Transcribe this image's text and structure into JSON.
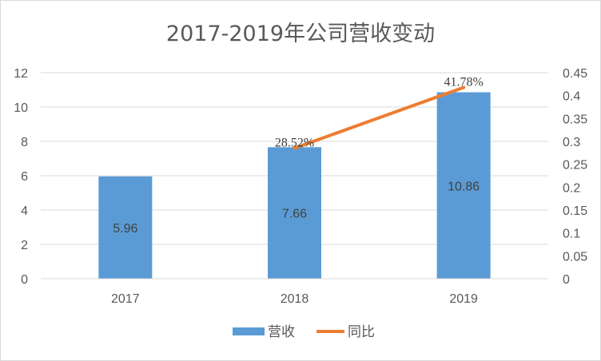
{
  "chart_data": {
    "type": "bar",
    "title": "2017-2019年公司营收变动",
    "categories": [
      "2017",
      "2018",
      "2019"
    ],
    "series": [
      {
        "name": "营收",
        "type": "bar",
        "axis": "left",
        "values": [
          5.96,
          7.66,
          10.86
        ],
        "labels": [
          "5.96",
          "7.66",
          "10.86"
        ],
        "color": "#5b9bd5"
      },
      {
        "name": "同比",
        "type": "line",
        "axis": "right",
        "values": [
          null,
          0.2852,
          0.4178
        ],
        "labels": [
          null,
          "28.52%",
          "41.78%"
        ],
        "color": "#ed7d31"
      }
    ],
    "y_left": {
      "min": 0,
      "max": 12,
      "ticks": [
        "0",
        "2",
        "4",
        "6",
        "8",
        "10",
        "12"
      ]
    },
    "y_right": {
      "min": 0,
      "max": 0.45,
      "ticks": [
        "0",
        "0.05",
        "0.1",
        "0.15",
        "0.2",
        "0.25",
        "0.3",
        "0.35",
        "0.4",
        "0.45"
      ]
    },
    "grid": true,
    "legend": "bottom"
  }
}
